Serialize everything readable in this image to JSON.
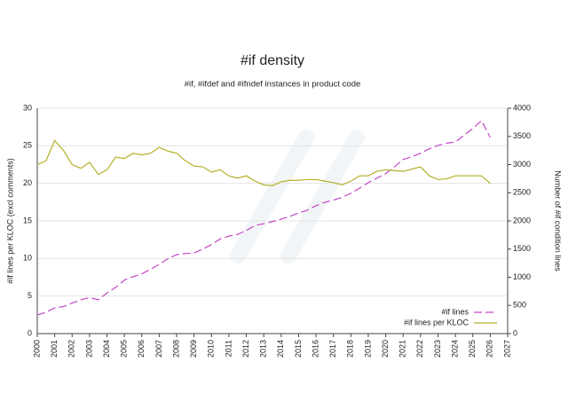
{
  "chart_data": {
    "type": "line",
    "title": "#if density",
    "subtitle": "#if, #ifdef and #ifndef instances in product code",
    "ylabel": "#if lines per KLOC (excl comments)",
    "y2label": "Number of #if condition lines",
    "x": [
      2000,
      2000.5,
      2001,
      2001.5,
      2002,
      2002.5,
      2003,
      2003.5,
      2004,
      2004.5,
      2005,
      2005.5,
      2006,
      2006.5,
      2007,
      2007.5,
      2008,
      2008.5,
      2009,
      2009.5,
      2010,
      2010.5,
      2011,
      2011.5,
      2012,
      2012.5,
      2013,
      2013.5,
      2014,
      2014.5,
      2015,
      2015.5,
      2016,
      2016.5,
      2017,
      2017.5,
      2018,
      2018.5,
      2019,
      2019.5,
      2020,
      2020.5,
      2021,
      2021.5,
      2022,
      2022.5,
      2023,
      2023.5,
      2024,
      2024.5,
      2025,
      2025.5,
      2026
    ],
    "xlim": [
      2000,
      2027
    ],
    "xticks": [
      2000,
      2001,
      2002,
      2003,
      2004,
      2005,
      2006,
      2007,
      2008,
      2009,
      2010,
      2011,
      2012,
      2013,
      2014,
      2015,
      2016,
      2017,
      2018,
      2019,
      2020,
      2021,
      2022,
      2023,
      2024,
      2025,
      2026,
      2027
    ],
    "ylim": [
      0,
      30
    ],
    "yticks": [
      0,
      5,
      10,
      15,
      20,
      25,
      30
    ],
    "y2lim": [
      0,
      4000
    ],
    "y2ticks": [
      0,
      500,
      1000,
      1500,
      2000,
      2500,
      3000,
      3500,
      4000
    ],
    "grid": true,
    "legend": "lower right",
    "series": [
      {
        "name": "#if lines",
        "color": "#c548c5",
        "line_style": "dashed",
        "axis": "y2",
        "values": [
          330,
          380,
          457,
          480,
          540,
          600,
          640,
          600,
          720,
          820,
          950,
          1010,
          1060,
          1140,
          1230,
          1330,
          1400,
          1420,
          1430,
          1500,
          1580,
          1680,
          1730,
          1760,
          1830,
          1920,
          1950,
          1990,
          2030,
          2080,
          2140,
          2190,
          2270,
          2330,
          2370,
          2420,
          2490,
          2580,
          2680,
          2760,
          2840,
          2960,
          3090,
          3140,
          3200,
          3280,
          3340,
          3380,
          3400,
          3520,
          3640,
          3780,
          3480
        ]
      },
      {
        "name": "#if lines per KLOC",
        "color": "#b4b02a",
        "line_style": "solid",
        "values": [
          22.5,
          23,
          25.7,
          24.4,
          22.5,
          22,
          22.8,
          21.2,
          21.8,
          23.5,
          23.3,
          24,
          23.8,
          24,
          24.8,
          24.3,
          24,
          23,
          22.3,
          22.2,
          21.5,
          21.8,
          21,
          20.7,
          21,
          20.3,
          19.8,
          19.7,
          20.2,
          20.4,
          20.4,
          20.5,
          20.5,
          20.3,
          20.1,
          19.8,
          20.3,
          21,
          21,
          21.6,
          21.8,
          21.7,
          21.6,
          21.9,
          22.2,
          21,
          20.5,
          20.6,
          21,
          21,
          21,
          21,
          20
        ]
      }
    ]
  }
}
